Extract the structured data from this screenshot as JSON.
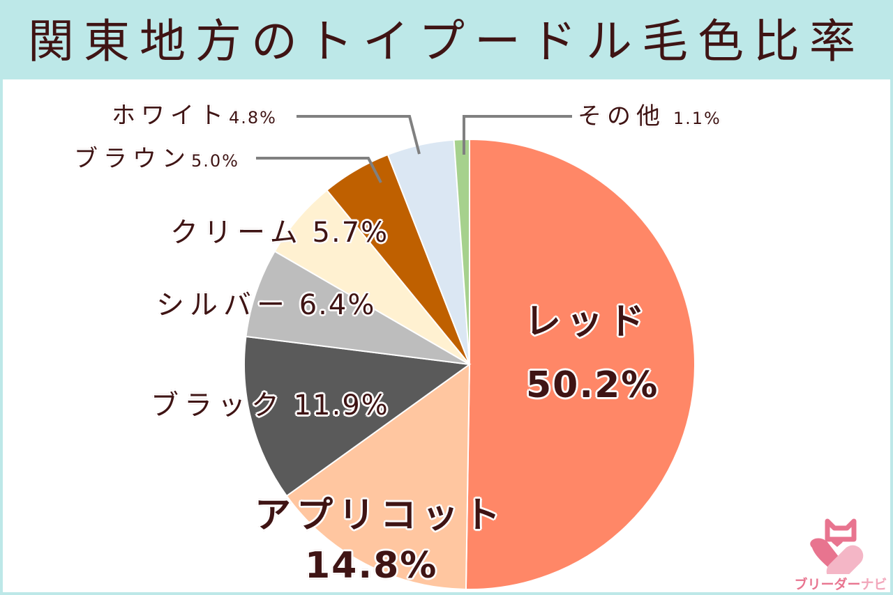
{
  "title": "関東地方のトイプードル毛色比率",
  "colors": {
    "header_bg": "#bde8e8",
    "panel_bg": "#ffffff",
    "text": "#3f1414",
    "leader_line": "#808080"
  },
  "chart_data": {
    "type": "pie",
    "title": "関東地方のトイプードル毛色比率",
    "start_angle": "12 o'clock",
    "direction": "clockwise",
    "unit": "%",
    "categories": [
      "レッド",
      "アプリコット",
      "ブラック",
      "シルバー",
      "クリーム",
      "ブラウン",
      "ホワイト",
      "その他"
    ],
    "values": [
      50.2,
      14.8,
      11.9,
      6.4,
      5.7,
      5.0,
      4.8,
      1.1
    ],
    "slice_colors": [
      "#ff8767",
      "#ffc6a0",
      "#5a5a5a",
      "#bdbdbd",
      "#fff1d1",
      "#bf6000",
      "#dbe7f3",
      "#a6d18d"
    ],
    "labels": [
      {
        "name": "レッド",
        "pct": "50.2%"
      },
      {
        "name": "アプリコット",
        "pct": "14.8%"
      },
      {
        "name": "ブラック",
        "pct": "11.9%"
      },
      {
        "name": "シルバー",
        "pct": "6.4%"
      },
      {
        "name": "クリーム",
        "pct": "5.7%"
      },
      {
        "name": "ブラウン",
        "pct": "5.0%"
      },
      {
        "name": "ホワイト",
        "pct": "4.8%"
      },
      {
        "name": "その他",
        "pct": "1.1%"
      }
    ],
    "legend": "none (labels on/beside slices with leader lines for small slices)"
  },
  "logo": {
    "text_main": "ブリーダー",
    "text_accent": "ナビ"
  }
}
